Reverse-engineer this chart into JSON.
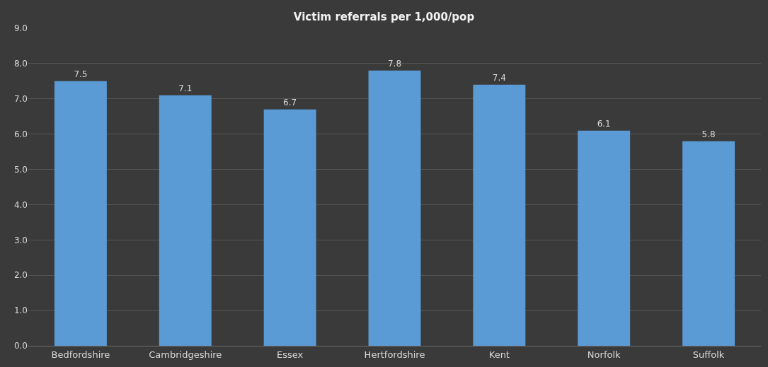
{
  "chart_data": {
    "type": "bar",
    "title": "Victim referrals per 1,000/pop",
    "categories": [
      "Bedfordshire",
      "Cambridgeshire",
      "Essex",
      "Hertfordshire",
      "Kent",
      "Norfolk",
      "Suffolk"
    ],
    "values": [
      7.5,
      7.1,
      6.7,
      7.8,
      7.4,
      6.1,
      5.8
    ],
    "color": "#5b9bd5",
    "ylim": [
      0,
      9
    ],
    "yticks": [
      {
        "value": 0,
        "label": "0.0"
      },
      {
        "value": 1,
        "label": "1.0"
      },
      {
        "value": 2,
        "label": "2.0"
      },
      {
        "value": 3,
        "label": "3.0"
      },
      {
        "value": 4,
        "label": "4.0"
      },
      {
        "value": 5,
        "label": "5.0"
      },
      {
        "value": 6,
        "label": "6.0"
      },
      {
        "value": 7,
        "label": "7.0"
      },
      {
        "value": 8,
        "label": "8.0"
      },
      {
        "value": 9,
        "label": "9.0"
      }
    ],
    "grid": "y",
    "data_labels": true
  }
}
